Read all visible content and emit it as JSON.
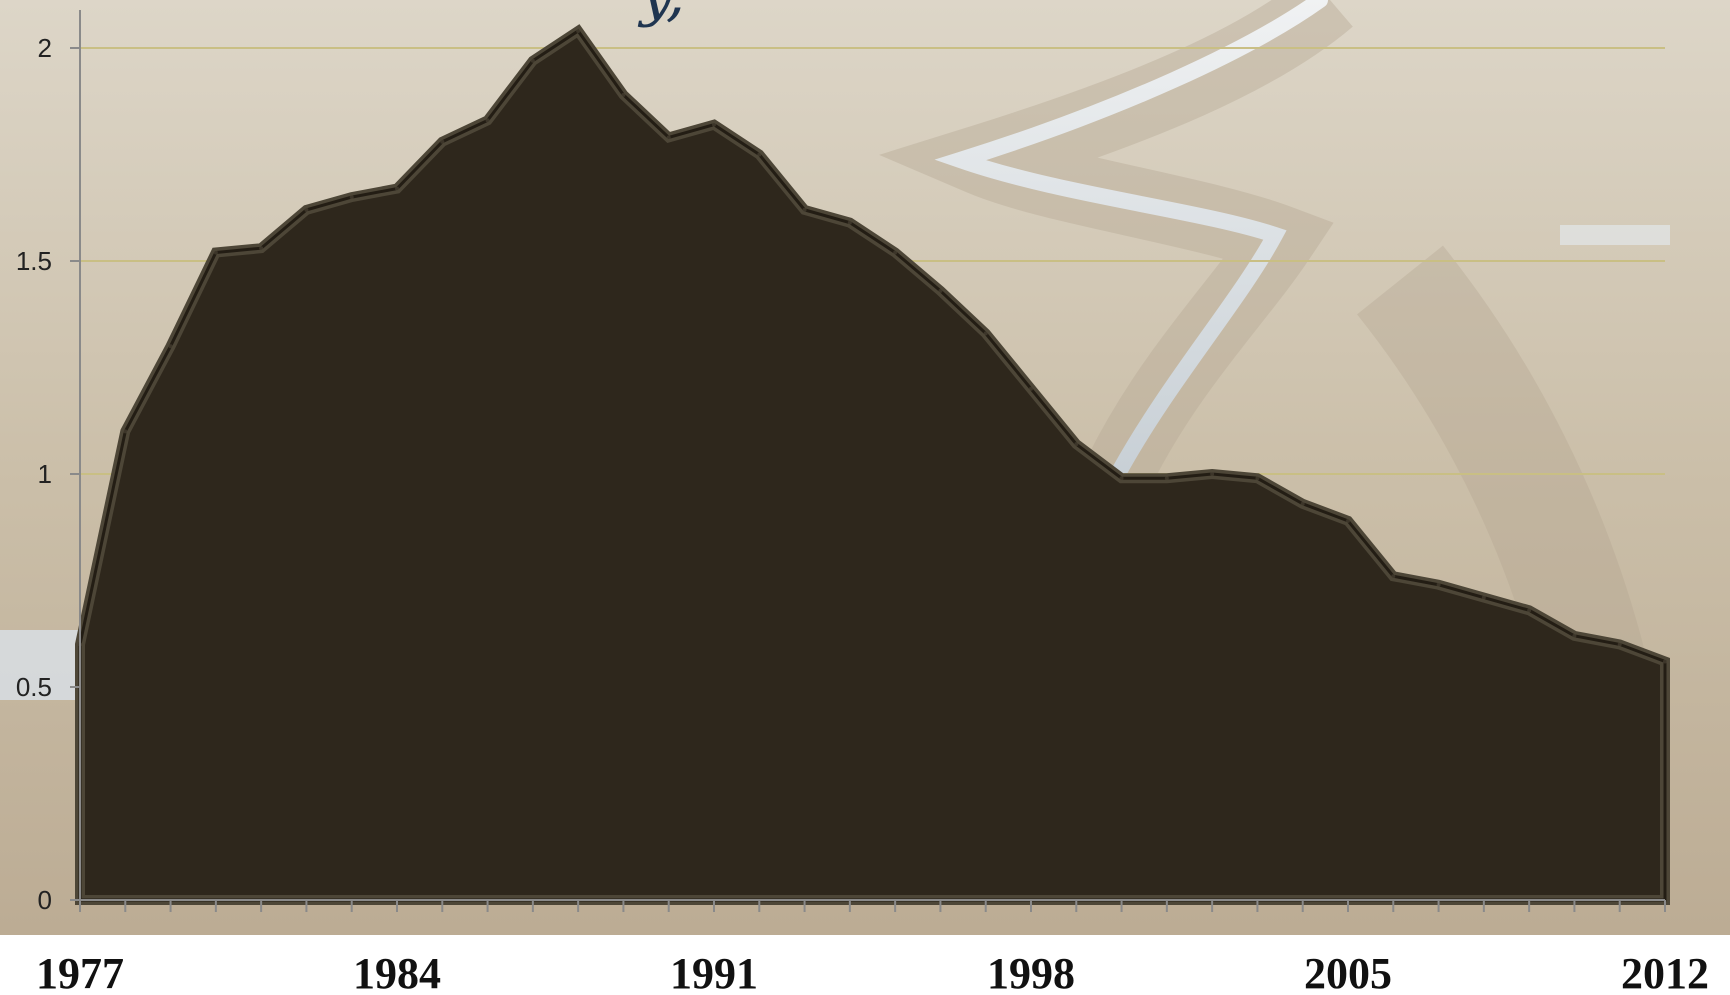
{
  "title_fragment": "y,",
  "colors": {
    "area_fill": "#2e271c",
    "area_edge": "#4d4637",
    "gridline": "#c9bf84",
    "axis": "#8a8a8a",
    "background_top": "#d8d1c1",
    "background_bottom": "#bfb09a"
  },
  "background_image": "alaska-pipeline-tundra-photo",
  "chart_data": {
    "type": "area",
    "x": [
      1977,
      1978,
      1979,
      1980,
      1981,
      1982,
      1983,
      1984,
      1985,
      1986,
      1987,
      1988,
      1989,
      1990,
      1991,
      1992,
      1993,
      1994,
      1995,
      1996,
      1997,
      1998,
      1999,
      2000,
      2001,
      2002,
      2003,
      2004,
      2005,
      2006,
      2007,
      2008,
      2009,
      2010,
      2011,
      2012
    ],
    "values": [
      0.6,
      1.1,
      1.3,
      1.52,
      1.53,
      1.62,
      1.65,
      1.67,
      1.78,
      1.83,
      1.97,
      2.04,
      1.89,
      1.79,
      1.82,
      1.75,
      1.62,
      1.59,
      1.52,
      1.43,
      1.33,
      1.2,
      1.07,
      0.99,
      0.99,
      1.0,
      0.99,
      0.93,
      0.89,
      0.76,
      0.74,
      0.71,
      0.68,
      0.62,
      0.6,
      0.56
    ],
    "xticks": [
      "1977",
      "1984",
      "1991",
      "1998",
      "2005",
      "2012"
    ],
    "yticks": [
      "0",
      "0.5",
      "1",
      "1.5",
      "2"
    ],
    "ylim": [
      0,
      2.1
    ],
    "xlim": [
      1977,
      2012
    ],
    "grid": true
  }
}
